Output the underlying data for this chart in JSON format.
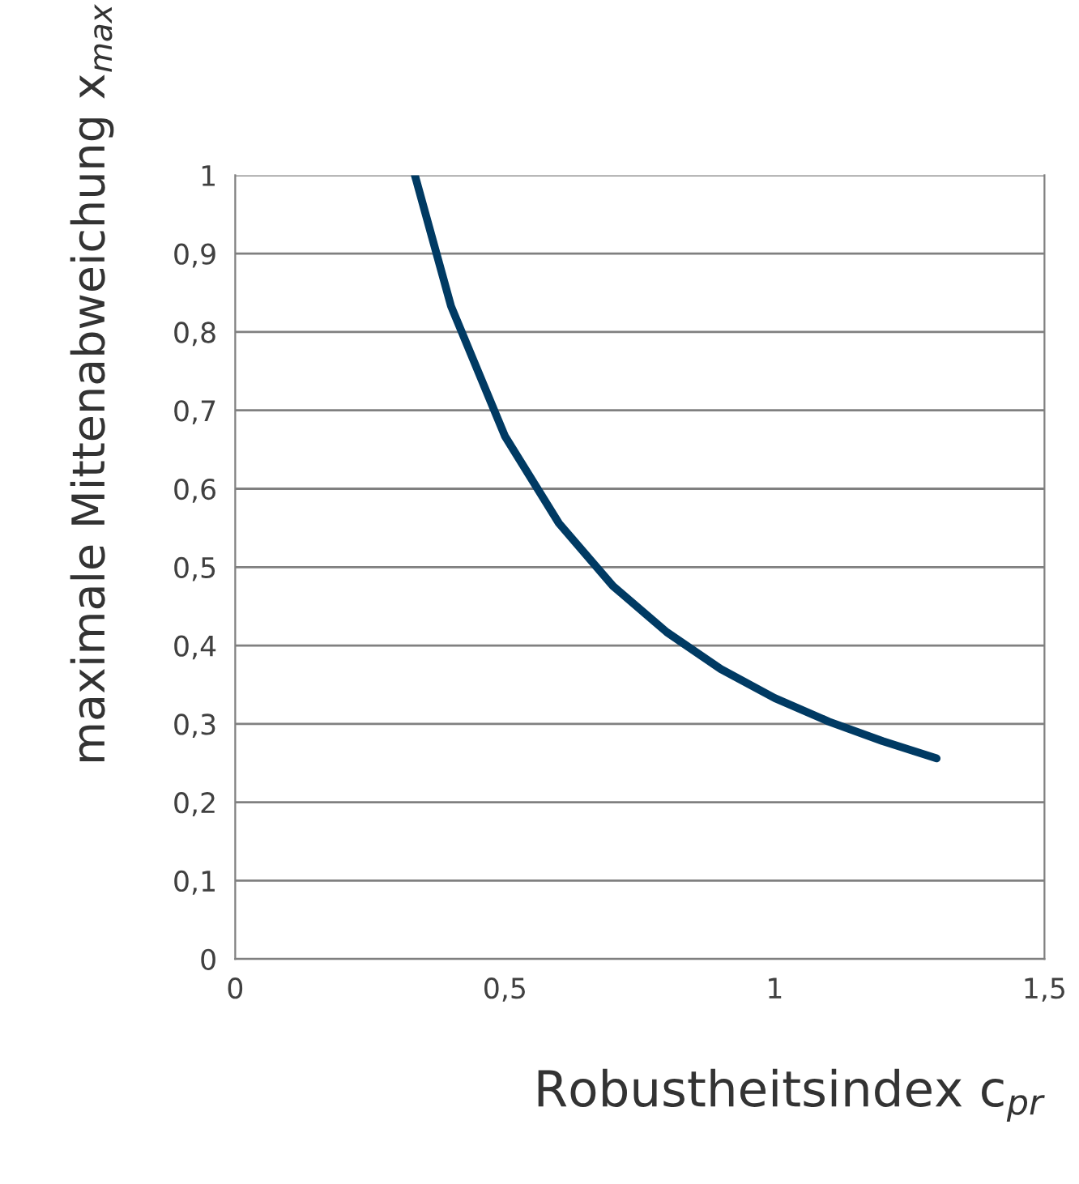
{
  "chart_data": {
    "type": "line",
    "xlabel": "Robustheitsindex c$_{pr}$",
    "ylabel": "maximale Mittenabweichung x$_{max}$",
    "x": [
      0.333,
      0.4,
      0.5,
      0.6,
      0.7,
      0.8,
      0.9,
      1.0,
      1.1,
      1.2,
      1.3
    ],
    "series": [
      {
        "color": "#003a63",
        "values": [
          1.0,
          0.833,
          0.667,
          0.556,
          0.476,
          0.417,
          0.37,
          0.333,
          0.303,
          0.278,
          0.256
        ]
      }
    ],
    "xlim": [
      0,
      1.5
    ],
    "xticks": [
      0,
      {
        "value": 0.5,
        "label": "0,5"
      },
      1,
      {
        "value": 1.5,
        "label": "1,5"
      }
    ],
    "ylim": [
      0,
      1
    ],
    "yticks": [
      0,
      {
        "value": 0.1,
        "label": "0,1"
      },
      {
        "value": 0.2,
        "label": "0,2"
      },
      {
        "value": 0.3,
        "label": "0,3"
      },
      {
        "value": 0.4,
        "label": "0,4"
      },
      {
        "value": 0.5,
        "label": "0,5"
      },
      {
        "value": 0.6,
        "label": "0,6"
      },
      {
        "value": 0.7,
        "label": "0,7"
      },
      {
        "value": 0.8,
        "label": "0,8"
      },
      {
        "value": 0.9,
        "label": "0,9"
      },
      1
    ],
    "grid": "y",
    "marker": "none",
    "line_style": "solid"
  }
}
